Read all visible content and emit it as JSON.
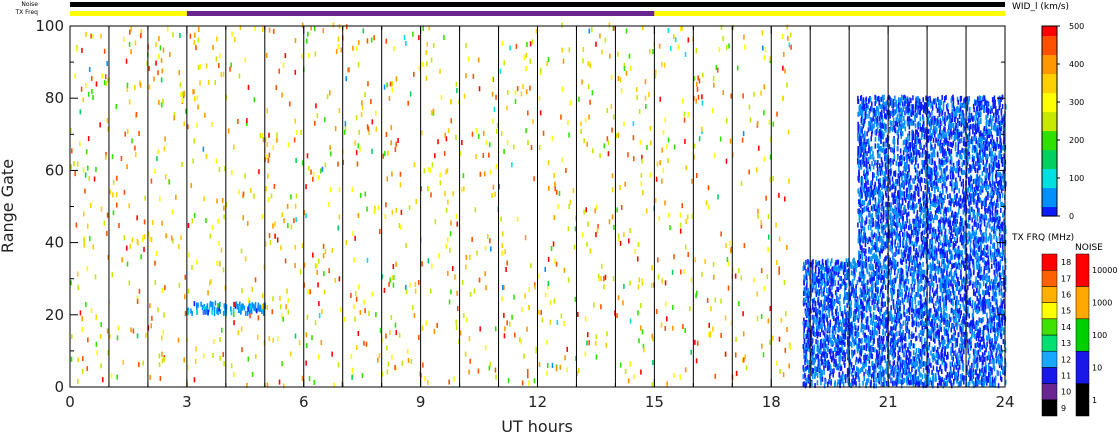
{
  "chart_data": {
    "type": "heatmap",
    "title": "",
    "xlabel": "UT hours",
    "ylabel": "Range Gate",
    "xlim": [
      0,
      24
    ],
    "ylim": [
      0,
      100
    ],
    "x_ticks": [
      "0",
      "3",
      "6",
      "9",
      "12",
      "15",
      "18",
      "21",
      "24"
    ],
    "y_ticks": [
      "0",
      "20",
      "40",
      "60",
      "80",
      "100"
    ],
    "grid": "vertical lines each hour",
    "top_bars": {
      "noise_label": "Noise",
      "txfreq_label": "TX Freq",
      "tx_segments": [
        {
          "start": 0,
          "end": 3,
          "mhz": 15
        },
        {
          "start": 3,
          "end": 15,
          "mhz": 10
        },
        {
          "start": 15,
          "end": 24,
          "mhz": 15
        }
      ]
    },
    "color_scales": {
      "width": {
        "title": "WID_l (km/s)",
        "ticks": [
          "0",
          "100",
          "200",
          "300",
          "400",
          "500"
        ],
        "colors": [
          "#0a1cff",
          "#0090ff",
          "#00e0e0",
          "#00d060",
          "#30e000",
          "#c8e800",
          "#ffff00",
          "#ffd000",
          "#ff9800",
          "#ff5000",
          "#ff0000"
        ]
      },
      "tx_freq": {
        "title": "TX FRQ (MHz)",
        "ticks": [
          "9",
          "10",
          "11",
          "12",
          "13",
          "14",
          "15",
          "16",
          "17",
          "18"
        ],
        "colors": [
          "#000000",
          "#6a2690",
          "#1818e8",
          "#18a8ff",
          "#00e070",
          "#40e000",
          "#ffff00",
          "#ffb000",
          "#ff6000",
          "#ff0000"
        ]
      },
      "noise": {
        "title": "NOISE",
        "ticks": [
          "1",
          "10",
          "100",
          "1000",
          "10000"
        ],
        "colors": [
          "#000000",
          "#1818e8",
          "#00d000",
          "#ffa800",
          "#ff0000"
        ]
      }
    },
    "regions": [
      {
        "desc": "low-width echoes",
        "x": [
          3.0,
          5.0
        ],
        "y": [
          20,
          23
        ],
        "width_kms": 60
      },
      {
        "desc": "low-width echoes",
        "x": [
          18.8,
          24.0
        ],
        "y": [
          0,
          35
        ],
        "width_kms": 30
      },
      {
        "desc": "low-width echoes",
        "x": [
          20.2,
          24.0
        ],
        "y": [
          35,
          80
        ],
        "width_kms": 30
      },
      {
        "desc": "scattered high-width noise",
        "x": [
          0,
          18.5
        ],
        "y": [
          0,
          100
        ],
        "width_kms": 400
      }
    ]
  }
}
